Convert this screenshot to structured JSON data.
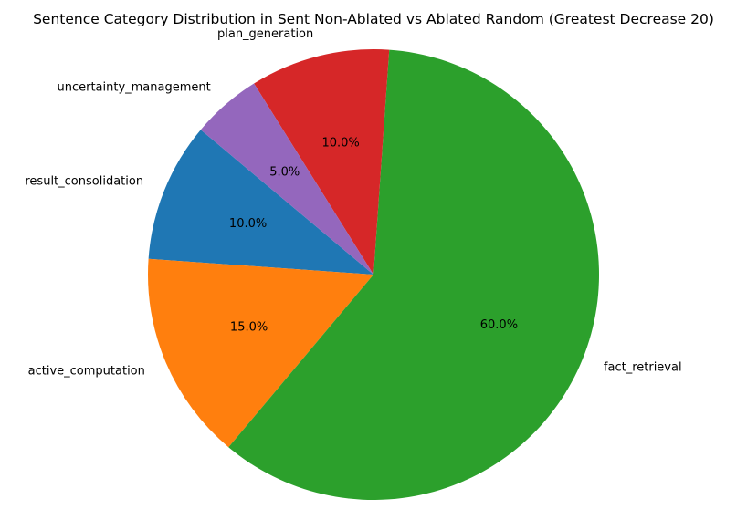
{
  "chart_data": {
    "type": "pie",
    "title": "Sentence Category Distribution in Sent Non-Ablated vs Ablated Random (Greatest Decrease 20)",
    "slices": [
      {
        "label": "result_consolidation",
        "value": 10.0,
        "pct_label": "10.0%",
        "color": "#1f77b4"
      },
      {
        "label": "active_computation",
        "value": 15.0,
        "pct_label": "15.0%",
        "color": "#ff7f0e"
      },
      {
        "label": "fact_retrieval",
        "value": 60.0,
        "pct_label": "60.0%",
        "color": "#2ca02c"
      },
      {
        "label": "plan_generation",
        "value": 10.0,
        "pct_label": "10.0%",
        "color": "#d62728"
      },
      {
        "label": "uncertainty_management",
        "value": 5.0,
        "pct_label": "5.0%",
        "color": "#9467bd"
      }
    ],
    "start_angle_deg": 140,
    "direction": "counterclockwise"
  }
}
